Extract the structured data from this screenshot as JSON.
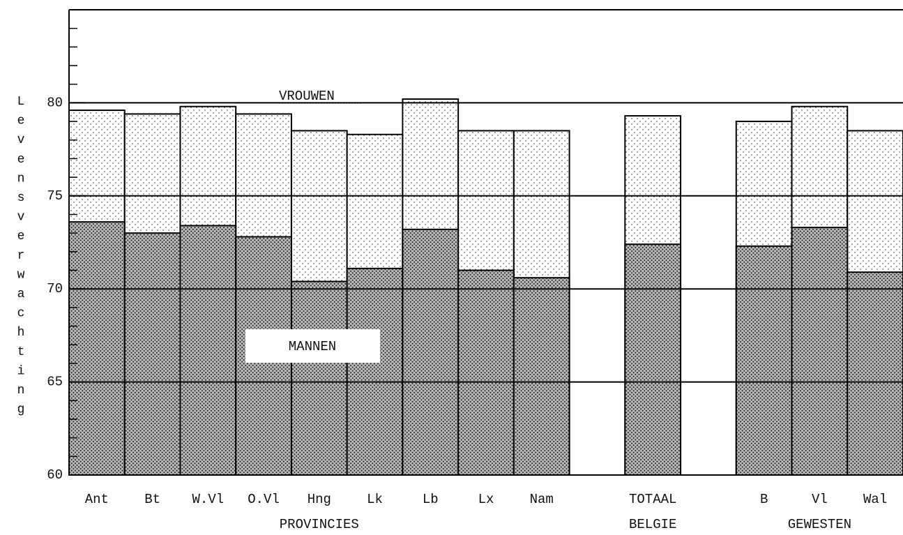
{
  "chart_data": {
    "type": "bar",
    "y_label": "Levensverwachting",
    "categories": [
      "Ant",
      "Bt",
      "W.Vl",
      "O.Vl",
      "Hng",
      "Lk",
      "Lb",
      "Lx",
      "Nam",
      null,
      "TOTAAL",
      null,
      "B",
      "Vl",
      "Wal"
    ],
    "series": [
      {
        "name": "VROUWEN",
        "color": "#333333",
        "values": [
          79.6,
          79.4,
          79.8,
          79.4,
          78.5,
          78.3,
          80.2,
          78.5,
          78.5,
          null,
          79.3,
          null,
          79.0,
          79.8,
          78.5
        ]
      },
      {
        "name": "MANNEN",
        "color": "#222222",
        "values": [
          73.6,
          73.0,
          73.4,
          72.8,
          70.4,
          71.1,
          73.2,
          71.0,
          70.6,
          null,
          72.4,
          null,
          72.3,
          73.3,
          70.9
        ]
      }
    ],
    "groups": [
      {
        "label": "PROVINCIES",
        "start": 0,
        "end": 8
      },
      {
        "label": "BELGIE",
        "start": 10,
        "end": 10
      },
      {
        "label": "GEWESTEN",
        "start": 12,
        "end": 14
      }
    ],
    "ylim": [
      60,
      85
    ],
    "yticks": [
      60,
      65,
      70,
      75,
      80
    ],
    "minor_yticks": [
      61,
      62,
      63,
      64,
      66,
      67,
      68,
      69,
      71,
      72,
      73,
      74,
      76,
      77,
      78,
      79,
      81,
      82,
      83,
      84,
      85
    ],
    "grid": true
  }
}
